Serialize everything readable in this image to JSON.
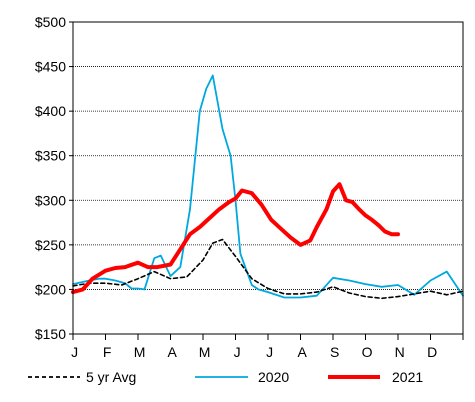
{
  "chart_data": {
    "type": "line",
    "title": "",
    "xlabel": "",
    "ylabel": "",
    "ylim": [
      150,
      500
    ],
    "yticks": [
      150,
      200,
      250,
      300,
      350,
      400,
      450,
      500
    ],
    "ytick_labels": [
      "$150",
      "$200",
      "$250",
      "$300",
      "$350",
      "$400",
      "$450",
      "$500"
    ],
    "xlim": [
      0,
      12
    ],
    "months": [
      "J",
      "F",
      "M",
      "A",
      "M",
      "J",
      "J",
      "A",
      "S",
      "O",
      "N",
      "D"
    ],
    "grid": "horizontal",
    "legend_position": "bottom",
    "series": [
      {
        "name": "5 yr Avg",
        "color": "#000000",
        "style": "dashed",
        "x": [
          0,
          0.5,
          1,
          1.5,
          2,
          2.5,
          3,
          3.5,
          4,
          4.3,
          4.6,
          5,
          5.5,
          6,
          6.5,
          7,
          7.5,
          8,
          8.5,
          9,
          9.5,
          10,
          10.5,
          11,
          11.5,
          12
        ],
        "y": [
          204,
          207,
          207,
          205,
          212,
          220,
          212,
          214,
          233,
          252,
          256,
          237,
          212,
          201,
          195,
          195,
          197,
          203,
          196,
          192,
          190,
          192,
          195,
          198,
          194,
          198
        ]
      },
      {
        "name": "2020",
        "color": "#00a8e0",
        "style": "solid",
        "x": [
          0,
          0.5,
          0.8,
          1,
          1.3,
          1.6,
          1.8,
          2,
          2.2,
          2.5,
          2.7,
          3,
          3.3,
          3.6,
          3.9,
          4.1,
          4.3,
          4.6,
          4.85,
          5,
          5.15,
          5.5,
          5.7,
          6,
          6.5,
          7,
          7.5,
          8,
          8.5,
          9,
          9.5,
          10,
          10.5,
          11,
          11.5,
          12
        ],
        "y": [
          206,
          210,
          212,
          212,
          210,
          207,
          201,
          201,
          200,
          235,
          238,
          215,
          225,
          290,
          400,
          425,
          440,
          380,
          350,
          300,
          240,
          205,
          200,
          197,
          191,
          191,
          193,
          213,
          210,
          206,
          203,
          205,
          194,
          210,
          220,
          193
        ]
      },
      {
        "name": "2021",
        "color": "#ff0000",
        "style": "solid",
        "x": [
          0,
          0.3,
          0.6,
          1,
          1.3,
          1.6,
          2,
          2.3,
          2.6,
          3,
          3.3,
          3.6,
          3.9,
          4.2,
          4.5,
          4.8,
          5,
          5.2,
          5.5,
          5.8,
          6.1,
          6.4,
          6.7,
          7,
          7.3,
          7.5,
          7.8,
          8,
          8.2,
          8.4,
          8.6,
          8.8,
          9,
          9.2,
          9.4,
          9.6,
          9.8,
          10
        ],
        "y": [
          197,
          200,
          212,
          221,
          224,
          225,
          230,
          225,
          225,
          228,
          245,
          262,
          270,
          280,
          290,
          298,
          302,
          311,
          308,
          295,
          278,
          268,
          258,
          250,
          255,
          270,
          290,
          310,
          318,
          300,
          298,
          290,
          283,
          278,
          272,
          265,
          262,
          262
        ]
      }
    ]
  }
}
